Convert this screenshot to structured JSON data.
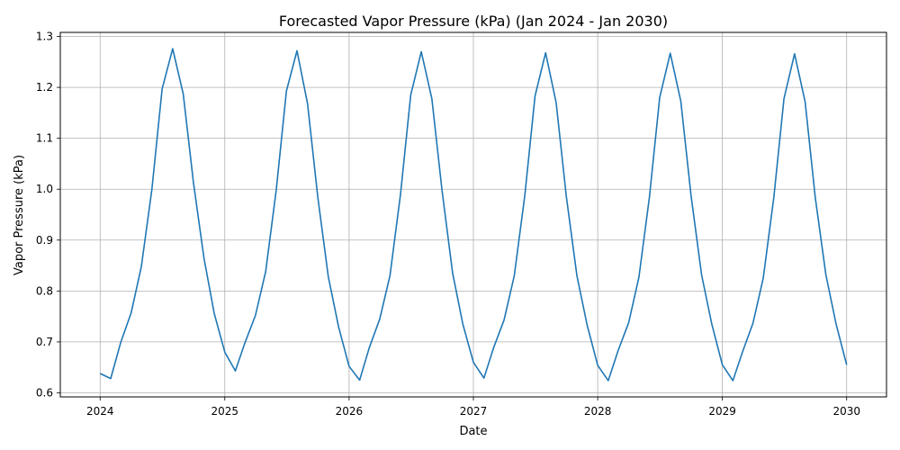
{
  "chart_data": {
    "type": "line",
    "title": "Forecasted Vapor Pressure (kPa) (Jan 2024 - Jan 2030)",
    "xlabel": "Date",
    "ylabel": "Vapor Pressure (kPa)",
    "xlim": [
      "2023-09-06",
      "2030-04-28"
    ],
    "ylim": [
      0.592,
      1.308
    ],
    "xticks": [
      "2024",
      "2025",
      "2026",
      "2027",
      "2028",
      "2029",
      "2030"
    ],
    "yticks": [
      "0.6",
      "0.7",
      "0.8",
      "0.9",
      "1.0",
      "1.1",
      "1.2",
      "1.3"
    ],
    "grid": true,
    "colors": {
      "line": "#1f77b4",
      "grid": "#b0b0b0"
    },
    "series": [
      {
        "name": "",
        "x": [
          "2024-01-01",
          "2024-02-01",
          "2024-03-01",
          "2024-04-01",
          "2024-05-01",
          "2024-06-01",
          "2024-07-01",
          "2024-08-01",
          "2024-09-01",
          "2024-10-01",
          "2024-11-01",
          "2024-12-01",
          "2025-01-01",
          "2025-02-01",
          "2025-03-01",
          "2025-04-01",
          "2025-05-01",
          "2025-06-01",
          "2025-07-01",
          "2025-08-01",
          "2025-09-01",
          "2025-10-01",
          "2025-11-01",
          "2025-12-01",
          "2026-01-01",
          "2026-02-01",
          "2026-03-01",
          "2026-04-01",
          "2026-05-01",
          "2026-06-01",
          "2026-07-01",
          "2026-08-01",
          "2026-09-01",
          "2026-10-01",
          "2026-11-01",
          "2026-12-01",
          "2027-01-01",
          "2027-02-01",
          "2027-03-01",
          "2027-04-01",
          "2027-05-01",
          "2027-06-01",
          "2027-07-01",
          "2027-08-01",
          "2027-09-01",
          "2027-10-01",
          "2027-11-01",
          "2027-12-01",
          "2028-01-01",
          "2028-02-01",
          "2028-03-01",
          "2028-04-01",
          "2028-05-01",
          "2028-06-01",
          "2028-07-01",
          "2028-08-01",
          "2028-09-01",
          "2028-10-01",
          "2028-11-01",
          "2028-12-01",
          "2029-01-01",
          "2029-02-01",
          "2029-03-01",
          "2029-04-01",
          "2029-05-01",
          "2029-06-01",
          "2029-07-01",
          "2029-08-01",
          "2029-09-01",
          "2029-10-01",
          "2029-11-01",
          "2029-12-01",
          "2030-01-01"
        ],
        "values": [
          0.638,
          0.628,
          0.698,
          0.757,
          0.848,
          1.0,
          1.197,
          1.276,
          1.187,
          1.013,
          0.864,
          0.756,
          0.68,
          0.643,
          0.698,
          0.752,
          0.838,
          0.998,
          1.193,
          1.272,
          1.168,
          0.985,
          0.828,
          0.73,
          0.652,
          0.625,
          0.688,
          0.745,
          0.83,
          0.99,
          1.185,
          1.27,
          1.178,
          0.997,
          0.835,
          0.735,
          0.66,
          0.629,
          0.688,
          0.743,
          0.83,
          0.988,
          1.183,
          1.268,
          1.17,
          0.985,
          0.83,
          0.733,
          0.654,
          0.624,
          0.683,
          0.738,
          0.827,
          0.985,
          1.18,
          1.267,
          1.173,
          0.988,
          0.832,
          0.735,
          0.655,
          0.624,
          0.68,
          0.737,
          0.825,
          0.983,
          1.178,
          1.266,
          1.172,
          0.983,
          0.832,
          0.735,
          0.655
        ]
      }
    ]
  }
}
